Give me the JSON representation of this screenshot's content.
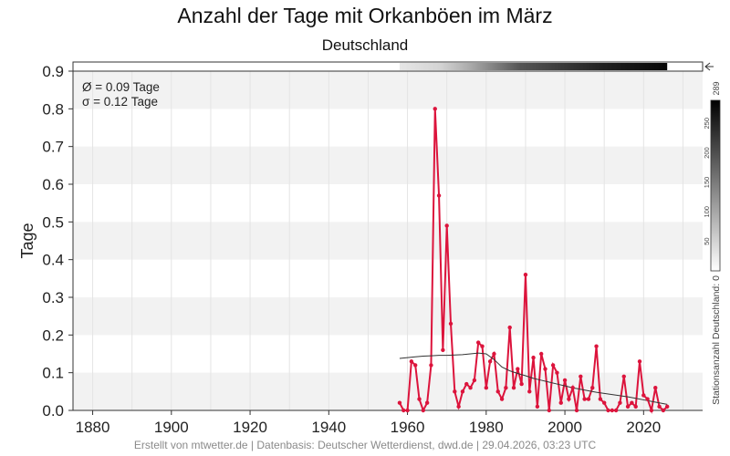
{
  "chart_data": {
    "type": "line",
    "title": "Anzahl der Tage mit Orkanböen im März",
    "subtitle": "Deutschland",
    "ylabel": "Tage",
    "xlim": [
      1875,
      2035
    ],
    "ylim": [
      0,
      0.9
    ],
    "x_ticks": [
      "1880",
      "1900",
      "1920",
      "1940",
      "1960",
      "1980",
      "2000",
      "2020"
    ],
    "y_ticks": [
      "0.0",
      "0.1",
      "0.2",
      "0.3",
      "0.4",
      "0.5",
      "0.6",
      "0.7",
      "0.8",
      "0.9"
    ],
    "grid": true,
    "stats": {
      "mean_label": "Ø = 0.09 Tage",
      "sd_label": "σ = 0.12 Tage"
    },
    "series": [
      {
        "color": "#dc143c",
        "x": [
          1958,
          1959,
          1960,
          1961,
          1962,
          1963,
          1964,
          1965,
          1966,
          1967,
          1968,
          1969,
          1970,
          1971,
          1972,
          1973,
          1974,
          1975,
          1976,
          1977,
          1978,
          1979,
          1980,
          1981,
          1982,
          1983,
          1984,
          1985,
          1986,
          1987,
          1988,
          1989,
          1990,
          1991,
          1992,
          1993,
          1994,
          1995,
          1996,
          1997,
          1998,
          1999,
          2000,
          2001,
          2002,
          2003,
          2004,
          2005,
          2006,
          2007,
          2008,
          2009,
          2010,
          2011,
          2012,
          2013,
          2014,
          2015,
          2016,
          2017,
          2018,
          2019,
          2020,
          2021,
          2022,
          2023,
          2024,
          2025,
          2026
        ],
        "y": [
          0.02,
          0.0,
          0.0,
          0.13,
          0.12,
          0.03,
          0.0,
          0.02,
          0.12,
          0.8,
          0.57,
          0.16,
          0.49,
          0.23,
          0.05,
          0.01,
          0.05,
          0.07,
          0.06,
          0.08,
          0.18,
          0.17,
          0.06,
          0.13,
          0.15,
          0.05,
          0.03,
          0.06,
          0.22,
          0.06,
          0.11,
          0.07,
          0.36,
          0.05,
          0.14,
          0.01,
          0.15,
          0.11,
          0.0,
          0.12,
          0.1,
          0.02,
          0.08,
          0.03,
          0.06,
          0.0,
          0.09,
          0.03,
          0.03,
          0.06,
          0.17,
          0.03,
          0.02,
          0.0,
          0.0,
          0.0,
          0.02,
          0.09,
          0.01,
          0.02,
          0.01,
          0.13,
          0.04,
          0.03,
          0.0,
          0.06,
          0.01,
          0.0,
          0.01
        ]
      },
      {
        "color": "#333333",
        "x": [
          1958,
          1960,
          1962,
          1964,
          1966,
          1968,
          1970,
          1972,
          1974,
          1976,
          1978,
          1980,
          1982,
          1984,
          1986,
          1988,
          1990,
          1992,
          1994,
          1996,
          1998,
          2000,
          2002,
          2004,
          2006,
          2008,
          2010,
          2012,
          2014,
          2016,
          2018,
          2020,
          2022,
          2024,
          2026
        ],
        "y": [
          0.138,
          0.14,
          0.142,
          0.144,
          0.145,
          0.146,
          0.146,
          0.147,
          0.148,
          0.15,
          0.152,
          0.15,
          0.135,
          0.115,
          0.105,
          0.098,
          0.092,
          0.085,
          0.08,
          0.075,
          0.07,
          0.065,
          0.06,
          0.056,
          0.052,
          0.048,
          0.045,
          0.042,
          0.039,
          0.036,
          0.032,
          0.028,
          0.024,
          0.02,
          0.016
        ]
      }
    ],
    "station_bar": {
      "x_start": 1958,
      "x_end": 2026,
      "max": 289
    },
    "colorbar": {
      "label": "Stationsanzahl Deutschland: 0",
      "max_label": "289",
      "ticks": [
        "50",
        "100",
        "150",
        "200",
        "250"
      ]
    }
  },
  "footer": "Erstellt von mtwetter.de | Datenbasis: Deutscher Wetterdienst, dwd.de | 29.04.2026, 03:23 UTC"
}
